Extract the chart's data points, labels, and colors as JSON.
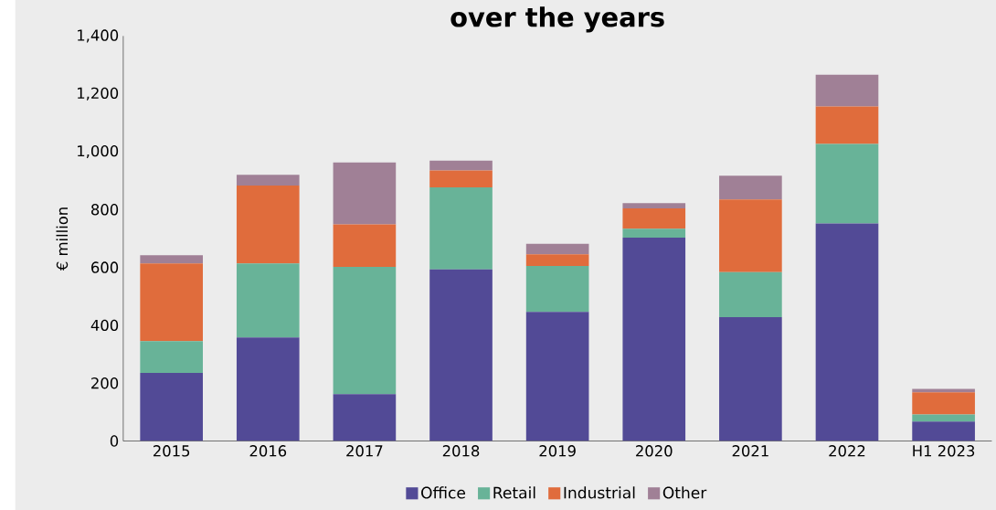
{
  "chart_data": {
    "type": "bar",
    "title": "over the years",
    "ylabel": "€ million",
    "categories": [
      "2015",
      "2016",
      "2017",
      "2018",
      "2019",
      "2020",
      "2021",
      "2022",
      "H1 2023"
    ],
    "stacked": true,
    "series": [
      {
        "name": "Office",
        "color": "#524a96",
        "values": [
          235,
          358,
          162,
          593,
          446,
          703,
          428,
          752,
          67
        ]
      },
      {
        "name": "Retail",
        "color": "#68b398",
        "values": [
          110,
          256,
          440,
          284,
          159,
          31,
          156,
          275,
          25
        ]
      },
      {
        "name": "Industrial",
        "color": "#e06c3c",
        "values": [
          269,
          269,
          147,
          58,
          40,
          70,
          251,
          129,
          76
        ]
      },
      {
        "name": "Other",
        "color": "#a08096",
        "values": [
          28,
          37,
          214,
          34,
          37,
          18,
          82,
          110,
          12
        ]
      }
    ],
    "ylim": [
      0,
      1400
    ],
    "yticks": [
      0,
      200,
      400,
      600,
      800,
      {
        "value": 1000,
        "label": "1,000"
      },
      {
        "value": 1200,
        "label": "1,200"
      },
      {
        "value": 1400,
        "label": "1,400"
      }
    ],
    "grid": false,
    "legend": "bottom"
  }
}
